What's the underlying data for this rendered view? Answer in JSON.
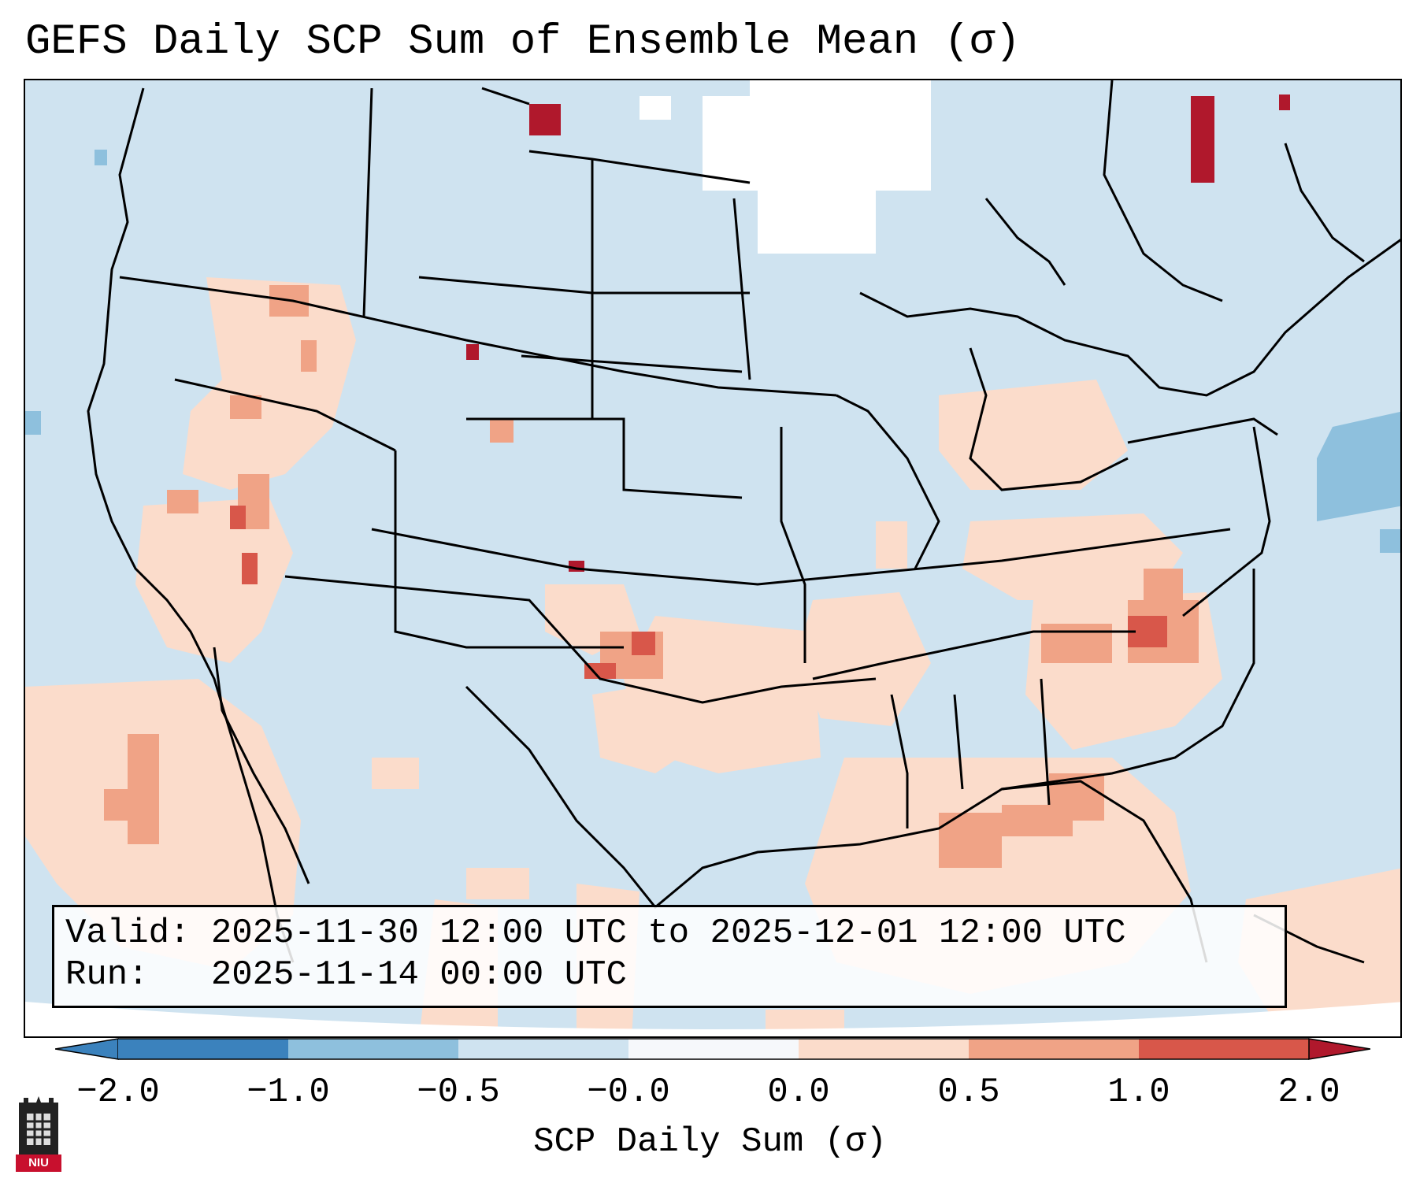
{
  "title": "GEFS Daily SCP Sum of Ensemble Mean (σ)",
  "info": {
    "valid_line": "Valid: 2025-11-30 12:00 UTC to 2025-12-01 12:00 UTC",
    "run_line": "Run:   2025-11-14 00:00 UTC"
  },
  "colorbar": {
    "label": "SCP Daily Sum (σ)",
    "ticks": [
      "−2.0",
      "−1.0",
      "−0.5",
      "−0.0",
      "0.0",
      "0.5",
      "1.0",
      "2.0"
    ],
    "colors": [
      "#3b82bd",
      "#8ec0dd",
      "#cfe3f0",
      "#f6f8fb",
      "#fbdccb",
      "#f0a386",
      "#d8574a",
      "#b0182c"
    ]
  },
  "logo": {
    "text": "NIU"
  },
  "colors": {
    "ocean_background": "#cfe3f0",
    "positive_low": "#fbdccb",
    "positive_mid": "#f0a386",
    "positive_high": "#d8574a",
    "positive_max": "#b0182c",
    "negative_low": "#8ec0dd",
    "no_data": "#ffffff"
  }
}
